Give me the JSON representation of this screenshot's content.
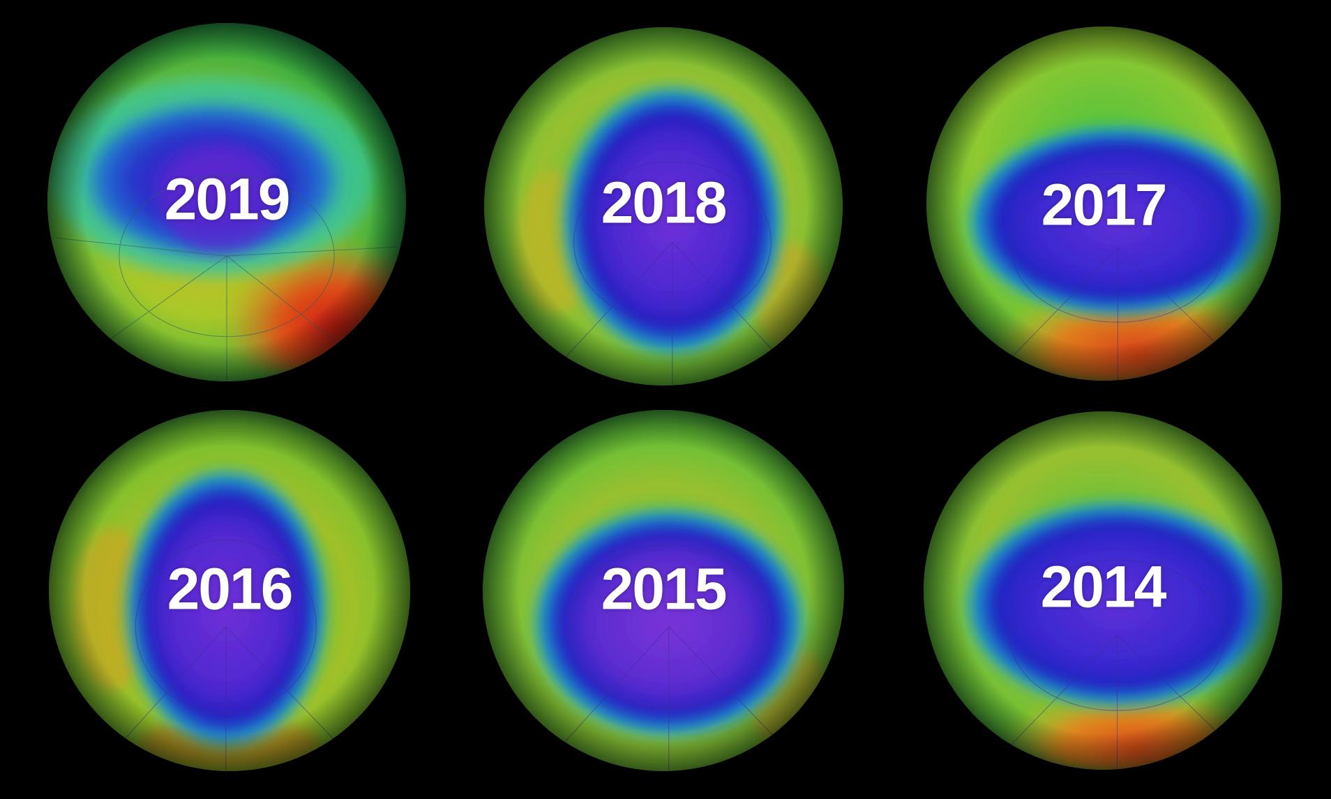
{
  "panels": [
    {
      "year": "2019"
    },
    {
      "year": "2018"
    },
    {
      "year": "2017"
    },
    {
      "year": "2016"
    },
    {
      "year": "2015"
    },
    {
      "year": "2014"
    }
  ],
  "colors": {
    "background": "#000000",
    "hole_violet": "#7a2ad8",
    "hole_blue": "#2a18c8",
    "transition_cyan": "#18c0c8",
    "mid_green": "#38c030",
    "outer_yellow": "#d8c818",
    "high_red": "#d82010",
    "label": "#ffffff"
  }
}
